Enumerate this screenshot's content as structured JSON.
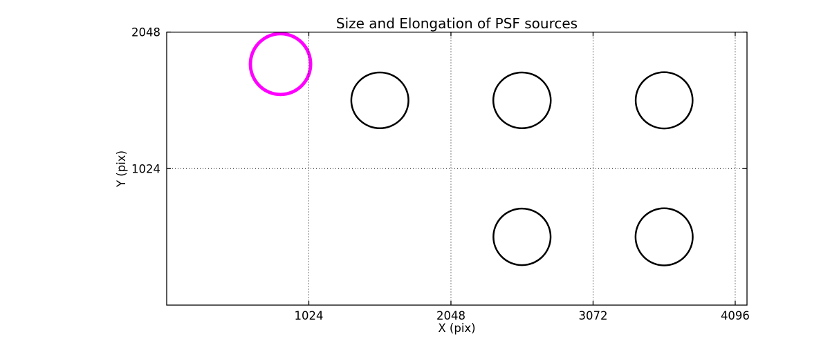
{
  "figure": {
    "background_color": "#ffffff",
    "axes_color": "#000000",
    "grid_style": "dotted"
  },
  "chart_data": {
    "type": "scatter",
    "title": "Size and Elongation of PSF sources",
    "xlabel": "X (pix)",
    "ylabel": "Y (pix)",
    "xlim": [
      0,
      4181
    ],
    "ylim": [
      0,
      2048
    ],
    "x_ticks": [
      1024,
      2048,
      3072,
      4096
    ],
    "y_ticks": [
      1024,
      2048
    ],
    "grid": true,
    "legend": false,
    "marker": "ellipse-outline",
    "points": [
      {
        "x": 820,
        "y": 1808,
        "rx": 217,
        "ry": 228,
        "color": "#FF00FF",
        "line_width": 4.8
      },
      {
        "x": 1536,
        "y": 1536,
        "rx": 206,
        "ry": 209,
        "color": "#000000",
        "line_width": 2.5
      },
      {
        "x": 2560,
        "y": 1536,
        "rx": 207,
        "ry": 209,
        "color": "#000000",
        "line_width": 2.5
      },
      {
        "x": 3584,
        "y": 1536,
        "rx": 205,
        "ry": 211,
        "color": "#000000",
        "line_width": 2.5
      },
      {
        "x": 2560,
        "y": 512,
        "rx": 206,
        "ry": 212,
        "color": "#000000",
        "line_width": 2.5
      },
      {
        "x": 3584,
        "y": 512,
        "rx": 206,
        "ry": 214,
        "color": "#000000",
        "line_width": 2.5
      }
    ]
  }
}
